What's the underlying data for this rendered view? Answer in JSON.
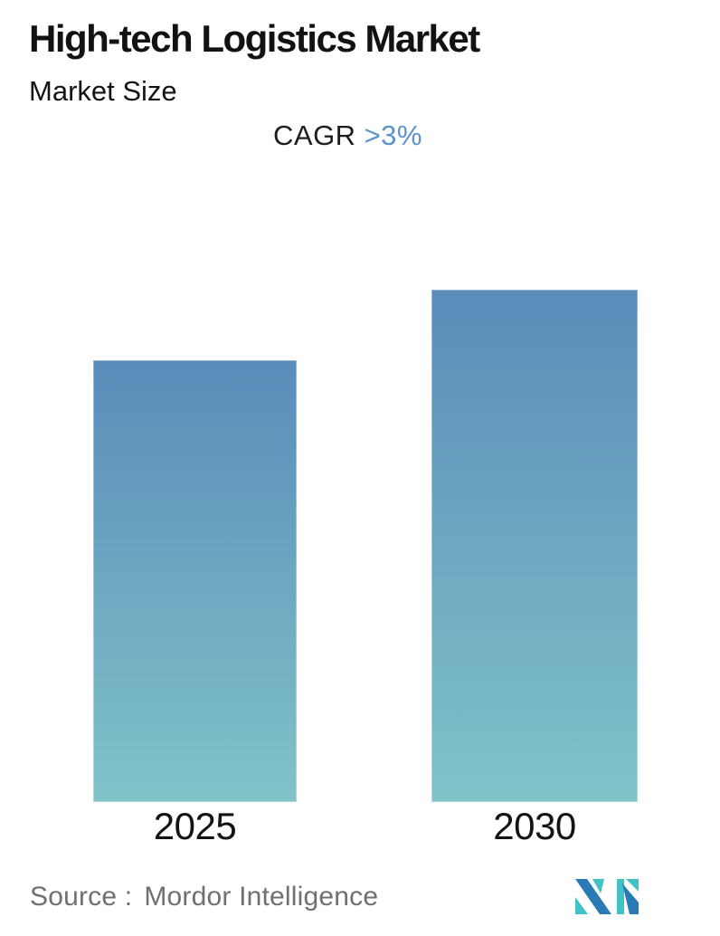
{
  "header": {
    "title": "High-tech Logistics Market",
    "subtitle": "Market Size",
    "cagr_label": "CAGR",
    "cagr_value": ">3%"
  },
  "chart_data": {
    "type": "bar",
    "title": "High-tech Logistics Market",
    "subtitle": "Market Size",
    "annotation": "CAGR >3%",
    "categories": [
      "2025",
      "2030"
    ],
    "values": [
      100,
      116
    ],
    "values_note": "relative market-size index (no numeric axis shown); 2030 bar is about 16% taller than 2025, consistent with >3% CAGR over 5 years",
    "xlabel": "",
    "ylabel": "",
    "axes_hidden": true,
    "gridlines": false,
    "legend": false,
    "bar_gradient_top": "#5a8cba",
    "bar_gradient_bottom": "#80c3c8"
  },
  "footer": {
    "source_label": "Source :",
    "source_value": "Mordor Intelligence",
    "logo_name": "mordor-intelligence-logo"
  },
  "colors": {
    "accent_blue": "#5b93c8",
    "text_dark": "#121214",
    "text_gray": "#6e7174",
    "logo_blue": "#2a7ab5",
    "logo_teal": "#41c2c4"
  }
}
